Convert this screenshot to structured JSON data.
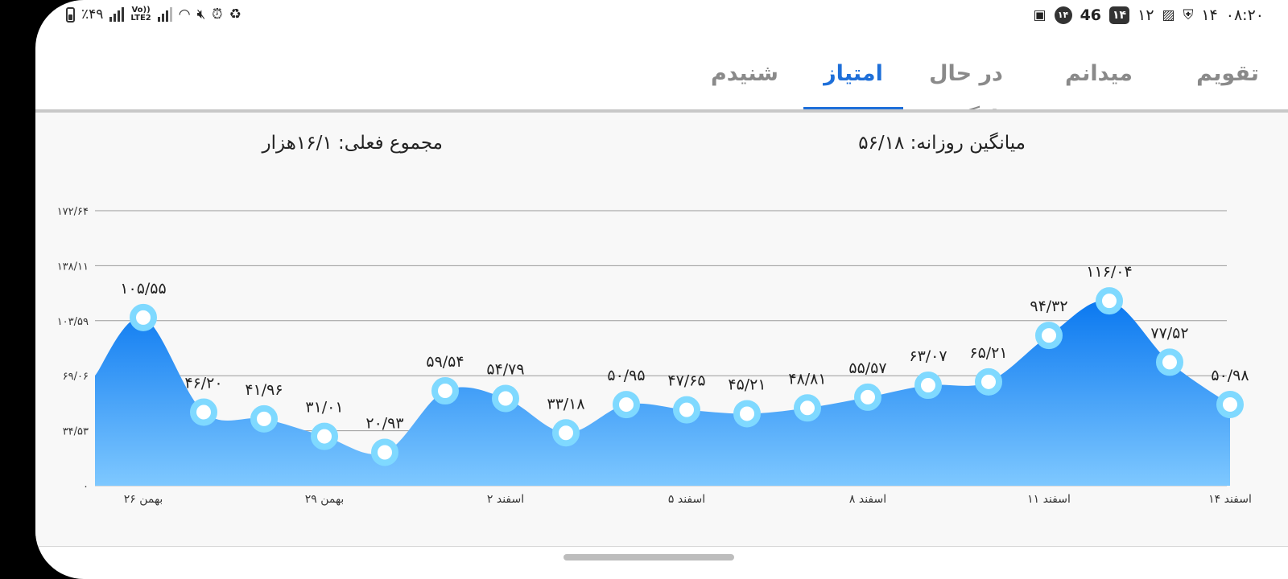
{
  "status_bar": {
    "battery": "٪۴۹",
    "network": "LTE2",
    "volte": "Vo))",
    "time": "۰۸:۲۰",
    "right_number_a": "۱۴",
    "right_number_b": "۱۲",
    "badge_square": "۱۴",
    "count": "46",
    "badge_circle": "۱۴"
  },
  "tabs": [
    {
      "label": "تقویم",
      "active": false
    },
    {
      "label": "میدانم",
      "active": false
    },
    {
      "label": "در حال یادگیری",
      "active": false
    },
    {
      "label": "امتیاز",
      "active": true
    },
    {
      "label": "شنیدم",
      "active": false
    }
  ],
  "summary": {
    "daily_average": "میانگین روزانه:  ۵۶/۱۸",
    "current_total": "مجموع فعلی: ۱۶/۱هزار"
  },
  "colors": {
    "accent": "#1e6fd9",
    "area_top": "#0a78f0",
    "area_bottom": "#7ec8ff",
    "point_ring": "#7fd9ff"
  },
  "chart_data": {
    "type": "area",
    "ylim": [
      0,
      172.64
    ],
    "y_ticks": [
      0,
      34.53,
      69.06,
      103.59,
      138.11,
      172.64
    ],
    "y_tick_labels": [
      "۰",
      "۳۴/۵۳",
      "۶۹/۰۶",
      "۱۰۳/۵۹",
      "۱۳۸/۱۱",
      "۱۷۲/۶۴"
    ],
    "x_tick_labels": [
      "۲۶ بهمن",
      "۲۹ بهمن",
      "۲ اسفند",
      "۵ اسفند",
      "۸ اسفند",
      "۱۱ اسفند",
      "۱۴ اسفند"
    ],
    "x_tick_indices": [
      1,
      4,
      7,
      10,
      13,
      16,
      19
    ],
    "points": [
      {
        "value": 105.55,
        "label": "۱۰۵/۵۵"
      },
      {
        "value": 46.2,
        "label": "۴۶/۲۰"
      },
      {
        "value": 41.96,
        "label": "۴۱/۹۶"
      },
      {
        "value": 31.01,
        "label": "۳۱/۰۱"
      },
      {
        "value": 20.93,
        "label": "۲۰/۹۳"
      },
      {
        "value": 59.54,
        "label": "۵۹/۵۴"
      },
      {
        "value": 54.79,
        "label": "۵۴/۷۹"
      },
      {
        "value": 33.18,
        "label": "۳۳/۱۸"
      },
      {
        "value": 50.95,
        "label": "۵۰/۹۵"
      },
      {
        "value": 47.65,
        "label": "۴۷/۶۵"
      },
      {
        "value": 45.21,
        "label": "۴۵/۲۱"
      },
      {
        "value": 48.81,
        "label": "۴۸/۸۱"
      },
      {
        "value": 55.57,
        "label": "۵۵/۵۷"
      },
      {
        "value": 63.07,
        "label": "۶۳/۰۷"
      },
      {
        "value": 65.21,
        "label": "۶۵/۲۱"
      },
      {
        "value": 94.32,
        "label": "۹۴/۳۲"
      },
      {
        "value": 116.04,
        "label": "۱۱۶/۰۴"
      },
      {
        "value": 77.52,
        "label": "۷۷/۵۲"
      },
      {
        "value": 50.98,
        "label": "۵۰/۹۸"
      }
    ],
    "grid": true
  }
}
